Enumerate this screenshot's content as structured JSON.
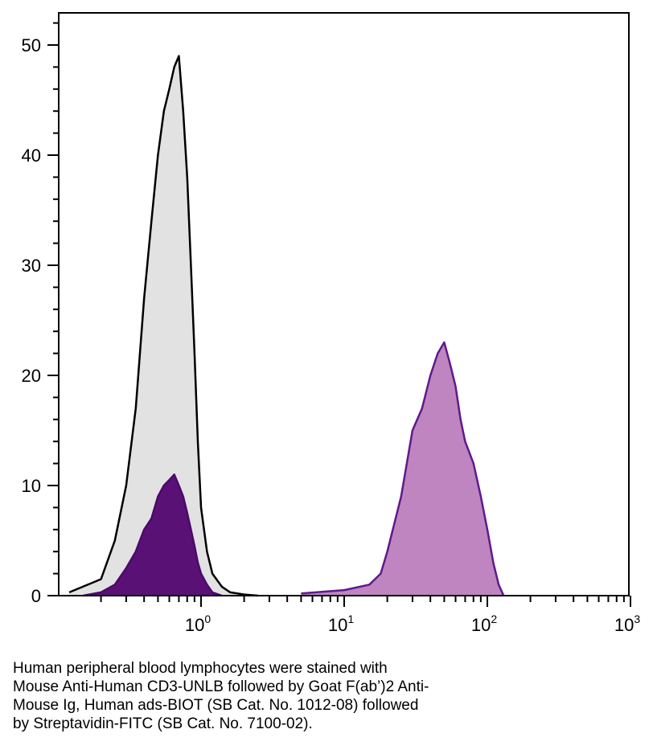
{
  "chart_data": {
    "type": "area",
    "title": "",
    "xlabel": "",
    "ylabel": "",
    "x_scale": "log",
    "xlim": [
      0.1,
      1000
    ],
    "ylim": [
      0,
      52
    ],
    "x_ticks": [
      {
        "value": 1,
        "base": "10",
        "exp": "0"
      },
      {
        "value": 10,
        "base": "10",
        "exp": "1"
      },
      {
        "value": 100,
        "base": "10",
        "exp": "2"
      },
      {
        "value": 1000,
        "base": "10",
        "exp": "3"
      }
    ],
    "y_ticks": [
      0,
      10,
      20,
      30,
      40,
      50
    ],
    "grid": false,
    "legend": "none",
    "series": [
      {
        "role": "control",
        "fill": "#e2e2e2",
        "stroke": "#000000",
        "x": [
          0.12,
          0.2,
          0.25,
          0.3,
          0.35,
          0.4,
          0.45,
          0.5,
          0.55,
          0.6,
          0.65,
          0.7,
          0.75,
          0.8,
          0.85,
          0.9,
          0.95,
          1.0,
          1.1,
          1.2,
          1.4,
          1.6,
          2.0,
          2.5
        ],
        "values": [
          0.3,
          1.5,
          5,
          10,
          17,
          27,
          34,
          40,
          44,
          46,
          48,
          49,
          44,
          38,
          30,
          22,
          14,
          8,
          4,
          2,
          0.8,
          0.3,
          0.1,
          0
        ]
      },
      {
        "role": "stained",
        "fill": "#bf85c0",
        "stroke": "#5e1a8b",
        "x": [
          5,
          10,
          15,
          18,
          20,
          25,
          30,
          35,
          40,
          45,
          50,
          55,
          60,
          65,
          70,
          80,
          90,
          100,
          110,
          120,
          130
        ],
        "values": [
          0.2,
          0.5,
          1,
          2,
          4,
          9,
          15,
          17,
          20,
          22,
          23,
          21,
          19,
          16,
          14,
          12,
          9,
          6,
          3,
          1,
          0
        ]
      },
      {
        "role": "stained-low",
        "fill": "#5a1176",
        "stroke": "#4a0a6a",
        "x": [
          0.15,
          0.2,
          0.25,
          0.3,
          0.35,
          0.4,
          0.45,
          0.5,
          0.55,
          0.6,
          0.65,
          0.7,
          0.75,
          0.8,
          0.85,
          0.9,
          0.95,
          1.0,
          1.1,
          1.2,
          1.4
        ],
        "values": [
          0,
          0.3,
          1,
          2.5,
          4,
          6,
          7,
          9,
          10,
          10.5,
          11,
          10,
          9,
          7.5,
          6,
          4.5,
          3,
          2,
          1,
          0.3,
          0
        ]
      }
    ]
  },
  "caption": {
    "lines": [
      "Human peripheral blood lymphocytes were stained with",
      "Mouse Anti-Human CD3-UNLB followed by Goat F(ab’)2 Anti-",
      "Mouse Ig, Human ads-BIOT (SB Cat. No. 1012-08) followed",
      "by Streptavidin-FITC (SB Cat. No. 7100-02)."
    ]
  }
}
